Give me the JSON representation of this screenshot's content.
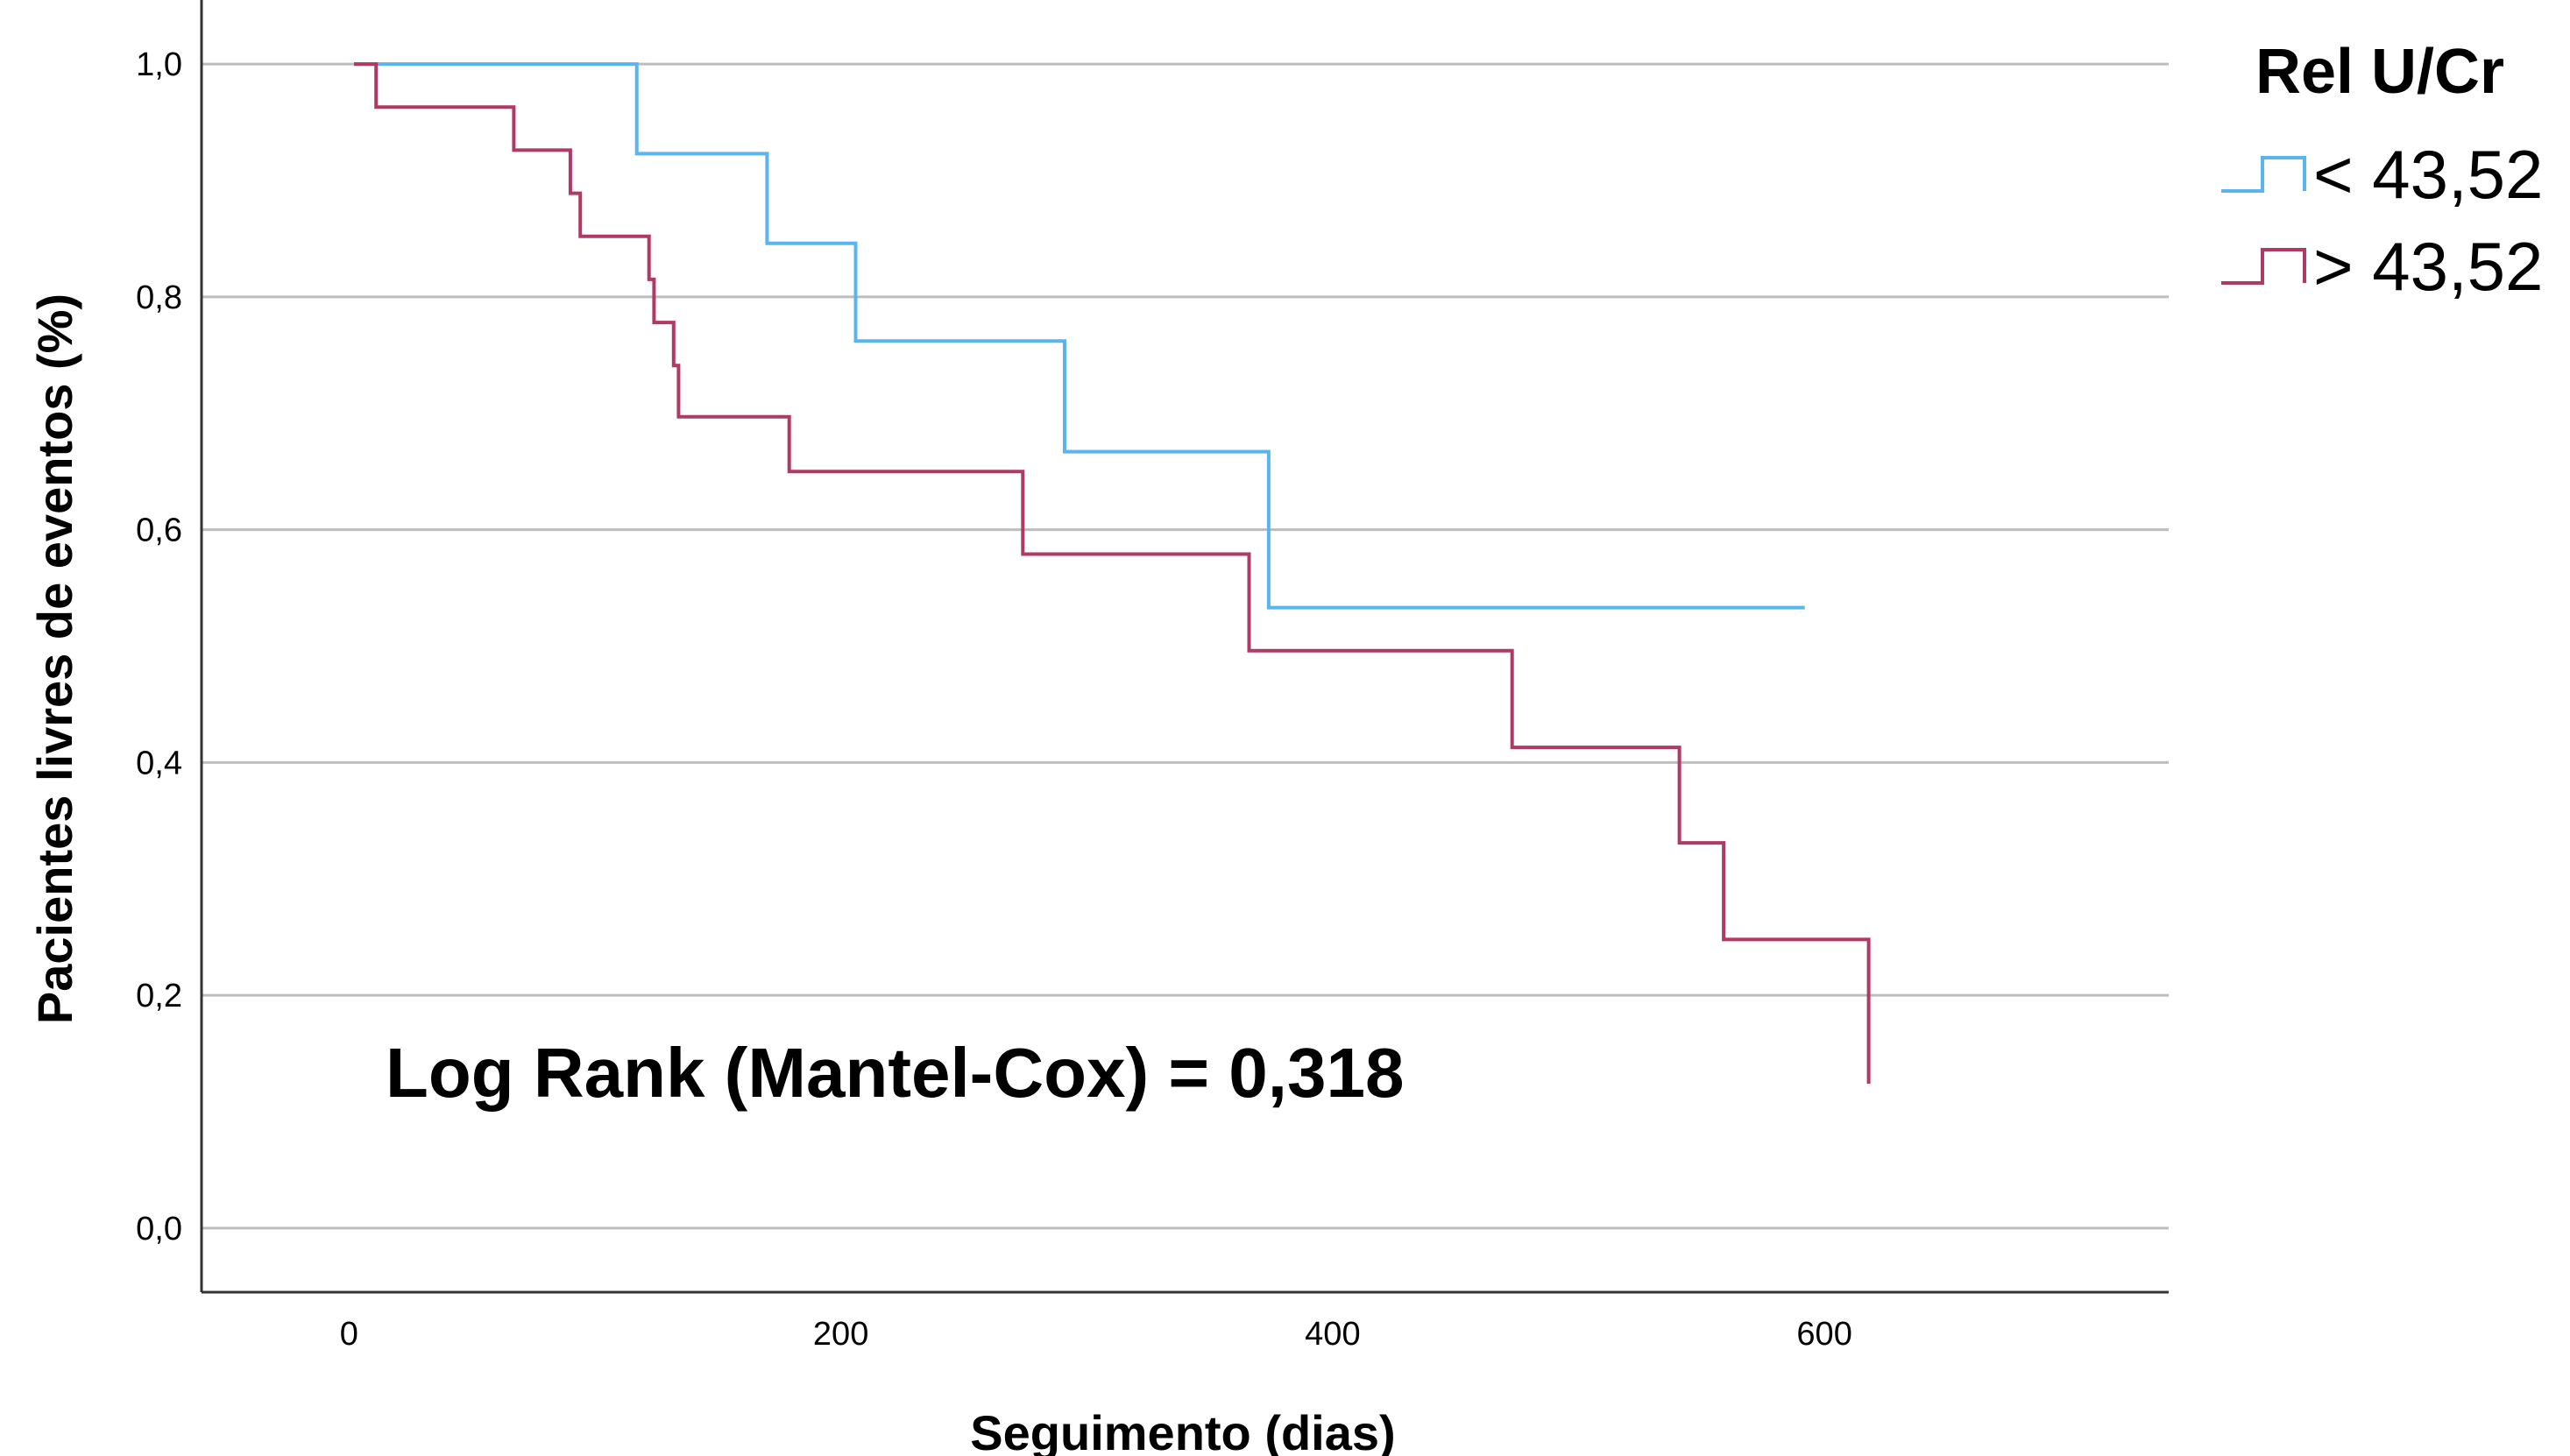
{
  "chart_data": {
    "type": "line",
    "title": "",
    "xlabel": "Seguimento (dias)",
    "ylabel": "Pacientes livres de eventos (%)",
    "xlim": [
      -60,
      740
    ],
    "ylim": [
      -0.055,
      1.055
    ],
    "x_ticks": [
      0,
      200,
      400,
      600
    ],
    "x_tick_labels": [
      "0",
      "200",
      "400",
      "600"
    ],
    "y_ticks": [
      0.0,
      0.2,
      0.4,
      0.6,
      0.8,
      1.0
    ],
    "y_tick_labels": [
      "0,0",
      "0,2",
      "0,4",
      "0,6",
      "0,8",
      "1,0"
    ],
    "grid": "horizontal",
    "legend": {
      "title": "Rel U/Cr",
      "position": "right"
    },
    "annotation": "Log Rank (Mantel-Cox) = 0,318",
    "series": [
      {
        "name": "< 43,52",
        "color": "#5ab4f0",
        "points": [
          [
            2,
            1.0
          ],
          [
            117,
            1.0
          ],
          [
            117,
            0.923
          ],
          [
            170,
            0.923
          ],
          [
            170,
            0.846
          ],
          [
            206,
            0.846
          ],
          [
            206,
            0.762
          ],
          [
            291,
            0.762
          ],
          [
            291,
            0.667
          ],
          [
            374,
            0.667
          ],
          [
            374,
            0.533
          ],
          [
            592,
            0.533
          ]
        ]
      },
      {
        "name": "> 43,52",
        "color": "#b03a66",
        "points": [
          [
            2,
            1.0
          ],
          [
            11,
            1.0
          ],
          [
            11,
            0.963
          ],
          [
            67,
            0.963
          ],
          [
            67,
            0.926
          ],
          [
            90,
            0.926
          ],
          [
            90,
            0.889
          ],
          [
            94,
            0.889
          ],
          [
            94,
            0.852
          ],
          [
            122,
            0.852
          ],
          [
            122,
            0.815
          ],
          [
            124,
            0.815
          ],
          [
            124,
            0.778
          ],
          [
            132,
            0.778
          ],
          [
            132,
            0.741
          ],
          [
            134,
            0.741
          ],
          [
            134,
            0.697
          ],
          [
            179,
            0.697
          ],
          [
            179,
            0.65
          ],
          [
            274,
            0.65
          ],
          [
            274,
            0.579
          ],
          [
            366,
            0.579
          ],
          [
            366,
            0.496
          ],
          [
            473,
            0.496
          ],
          [
            473,
            0.413
          ],
          [
            541,
            0.413
          ],
          [
            541,
            0.331
          ],
          [
            559,
            0.331
          ],
          [
            559,
            0.248
          ],
          [
            618,
            0.248
          ],
          [
            618,
            0.124
          ]
        ]
      }
    ]
  }
}
